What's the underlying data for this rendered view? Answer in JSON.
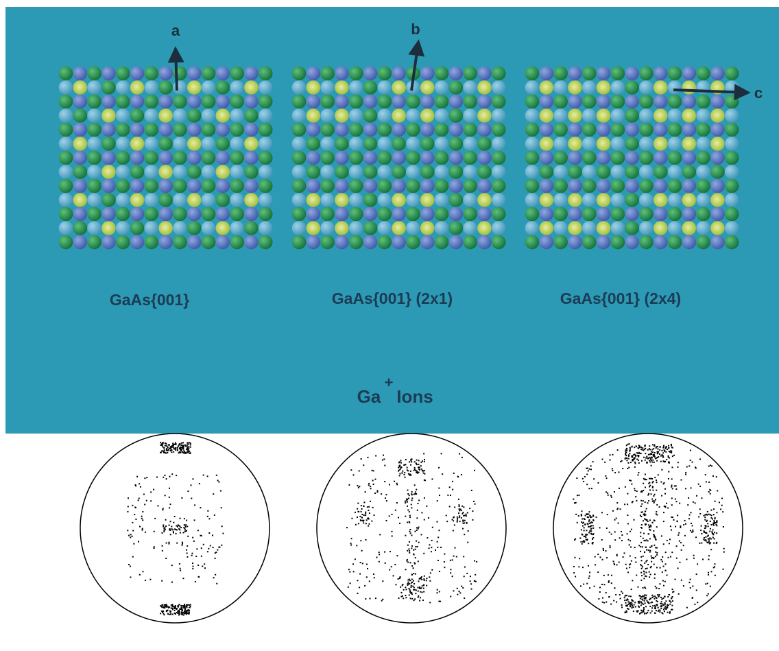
{
  "panels": [
    {
      "label": "GaAs{001}",
      "arrow": "a"
    },
    {
      "label": "GaAs{001} (2x1)",
      "arrow": "b"
    },
    {
      "label": "GaAs{001} (2x4)",
      "arrow": "c"
    }
  ],
  "ion_label": {
    "symbol": "Ga",
    "charge": "+",
    "word": "Ions"
  }
}
